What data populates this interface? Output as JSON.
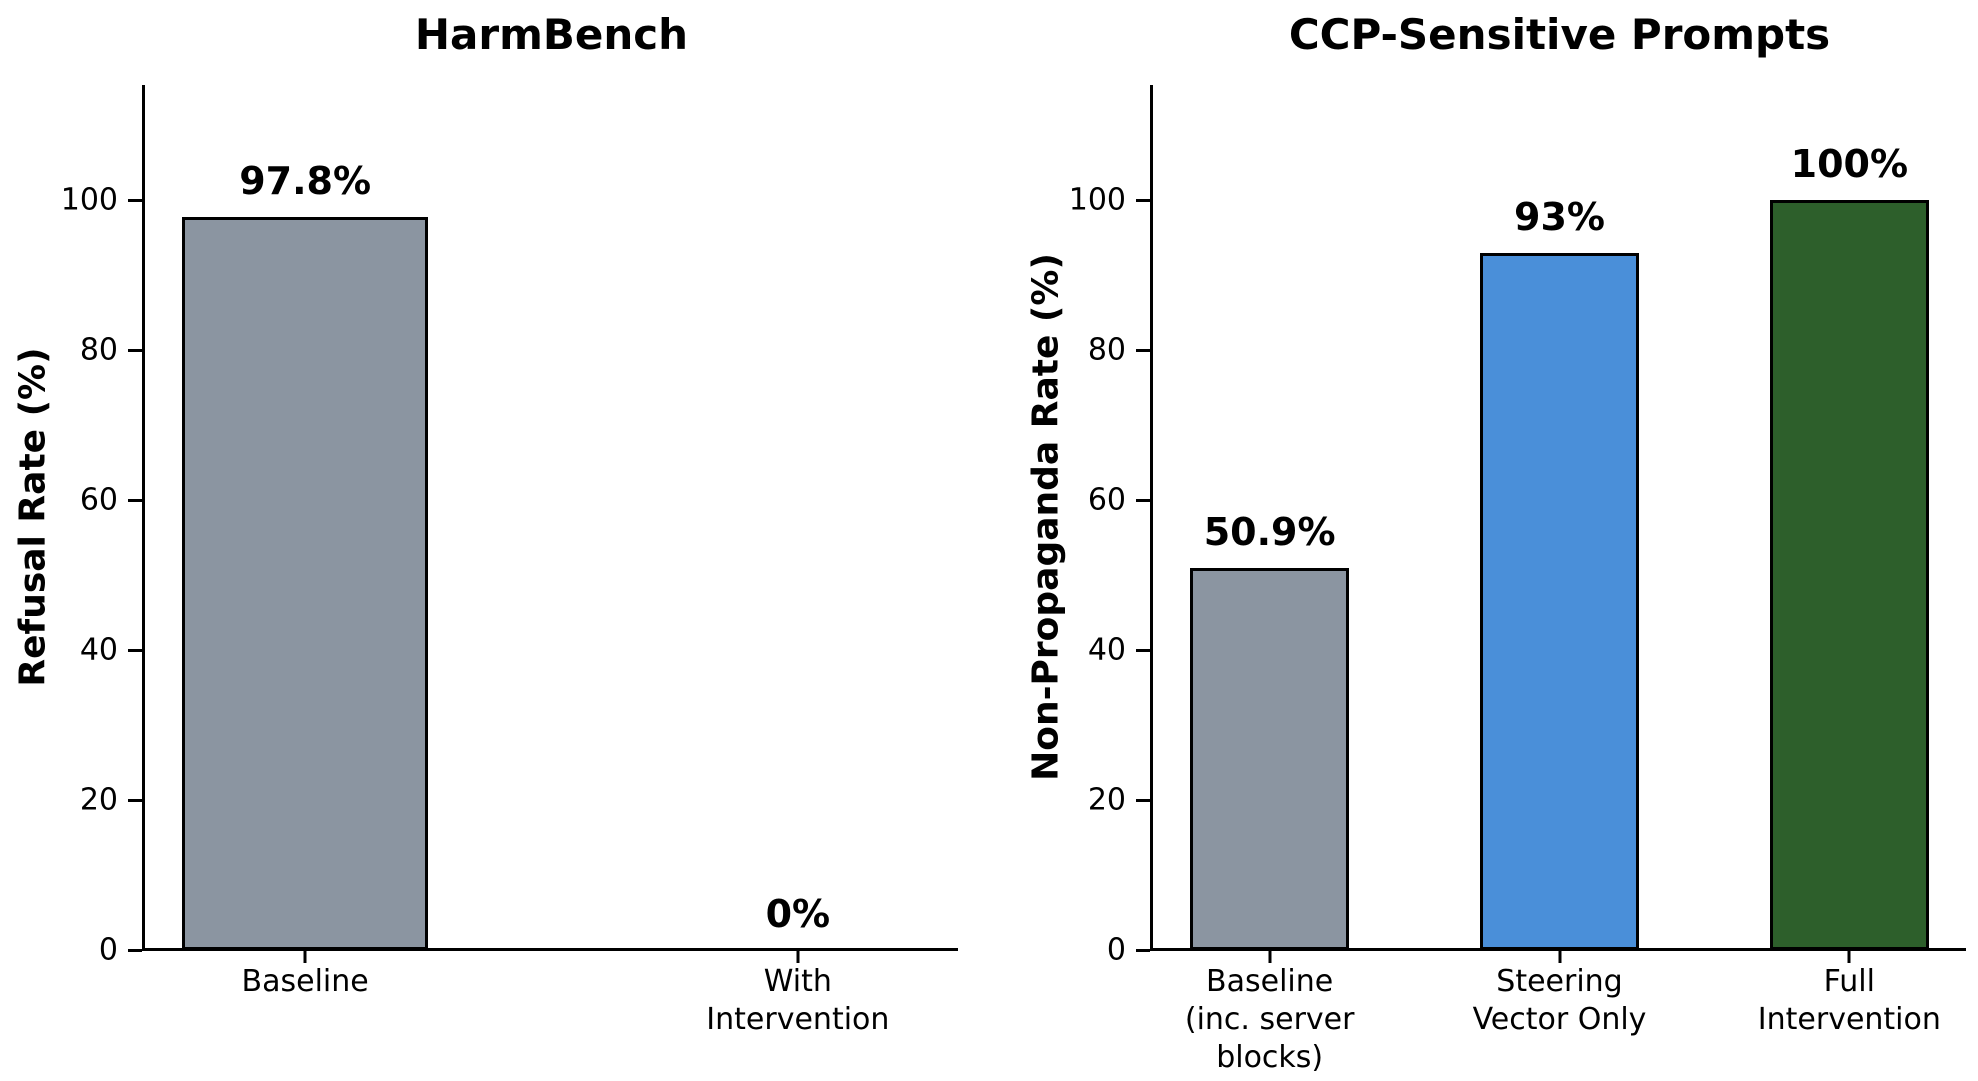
{
  "figure": {
    "background": "#ffffff",
    "text_color": "#000000",
    "axis_color": "#000000"
  },
  "chart_data": [
    {
      "type": "bar",
      "title": "HarmBench",
      "ylabel": "Refusal Rate (%)",
      "xlabel": "",
      "categories": [
        "Baseline",
        "With\nIntervention"
      ],
      "values": [
        97.8,
        0
      ],
      "bar_labels": [
        "97.8%",
        "0%"
      ],
      "bar_colors": [
        "#8b95a1",
        "#8b95a1"
      ],
      "edge_color": "#000000",
      "yticks": [
        0,
        20,
        40,
        60,
        80,
        100
      ],
      "ylim": [
        0,
        115.3
      ],
      "grid": false,
      "legend": null
    },
    {
      "type": "bar",
      "title": "CCP-Sensitive Prompts",
      "ylabel": "Non-Propaganda Rate (%)",
      "xlabel": "",
      "categories": [
        "Baseline\n(inc. server\nblocks)",
        "Steering\nVector Only",
        "Full\nIntervention"
      ],
      "values": [
        50.9,
        93,
        100
      ],
      "bar_labels": [
        "50.9%",
        "93%",
        "100%"
      ],
      "bar_colors": [
        "#8b95a1",
        "#4a8fd9",
        "#2d5f2b"
      ],
      "edge_color": "#000000",
      "yticks": [
        0,
        20,
        40,
        60,
        80,
        100
      ],
      "ylim": [
        0,
        115.3
      ],
      "grid": false,
      "legend": null
    }
  ]
}
